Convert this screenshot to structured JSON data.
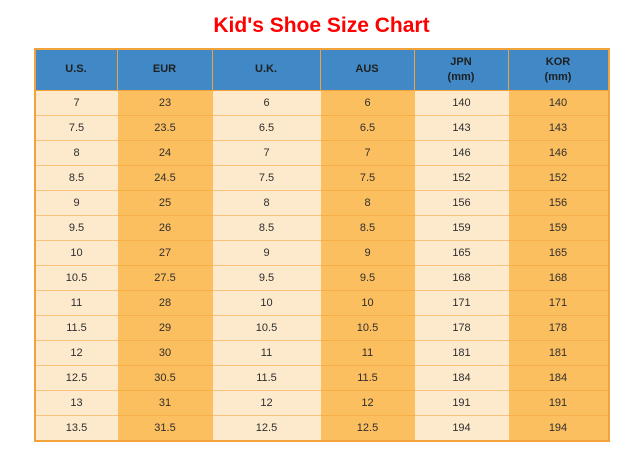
{
  "page": {
    "background": "#ffffff"
  },
  "title": {
    "text": "Kid's Shoe Size Chart"
  },
  "colors": {
    "title_text": "#fe0000",
    "header_bg": "#4088c6",
    "header_text": "#1f1f1f",
    "cell_text": "#2e2e2e",
    "light_col_bg": "#fdeacd",
    "orange_col_bg": "#fcbf60",
    "grid_border": "#f2a33c"
  },
  "chart_data": {
    "type": "table",
    "title": "Kid's Shoe Size Chart",
    "columns": [
      {
        "label": "U.S.",
        "unit": ""
      },
      {
        "label": "EUR",
        "unit": ""
      },
      {
        "label": "U.K.",
        "unit": ""
      },
      {
        "label": "AUS",
        "unit": ""
      },
      {
        "label": "JPN",
        "unit": "(mm)"
      },
      {
        "label": "KOR",
        "unit": "(mm)"
      }
    ],
    "rows": [
      [
        "7",
        "23",
        "6",
        "6",
        "140",
        "140"
      ],
      [
        "7.5",
        "23.5",
        "6.5",
        "6.5",
        "143",
        "143"
      ],
      [
        "8",
        "24",
        "7",
        "7",
        "146",
        "146"
      ],
      [
        "8.5",
        "24.5",
        "7.5",
        "7.5",
        "152",
        "152"
      ],
      [
        "9",
        "25",
        "8",
        "8",
        "156",
        "156"
      ],
      [
        "9.5",
        "26",
        "8.5",
        "8.5",
        "159",
        "159"
      ],
      [
        "10",
        "27",
        "9",
        "9",
        "165",
        "165"
      ],
      [
        "10.5",
        "27.5",
        "9.5",
        "9.5",
        "168",
        "168"
      ],
      [
        "11",
        "28",
        "10",
        "10",
        "171",
        "171"
      ],
      [
        "11.5",
        "29",
        "10.5",
        "10.5",
        "178",
        "178"
      ],
      [
        "12",
        "30",
        "11",
        "11",
        "181",
        "181"
      ],
      [
        "12.5",
        "30.5",
        "11.5",
        "11.5",
        "184",
        "184"
      ],
      [
        "13",
        "31",
        "12",
        "12",
        "191",
        "191"
      ],
      [
        "13.5",
        "31.5",
        "12.5",
        "12.5",
        "194",
        "194"
      ]
    ]
  }
}
